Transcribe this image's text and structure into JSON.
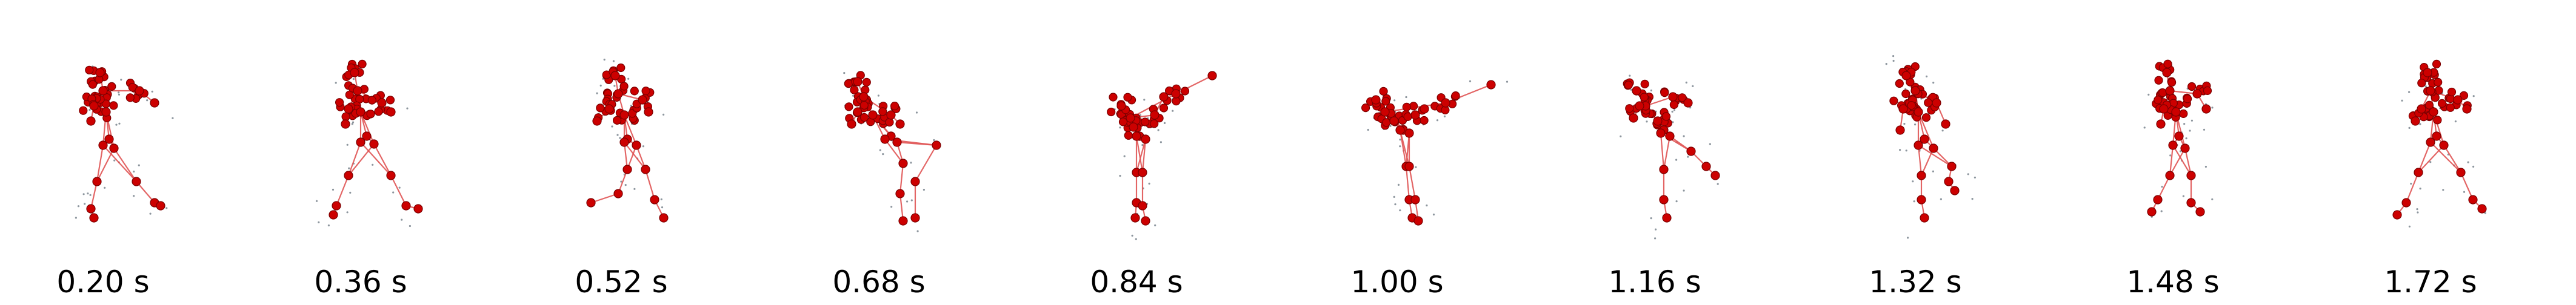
{
  "colors": {
    "joint": "#cc0000",
    "bone": "#e05555",
    "noise": "#2f3f4f",
    "label": "#000000",
    "background": "#ffffff"
  },
  "frames": [
    {
      "label": "0.20 s"
    },
    {
      "label": "0.36 s"
    },
    {
      "label": "0.52 s"
    },
    {
      "label": "0.68 s"
    },
    {
      "label": "0.84 s"
    },
    {
      "label": "1.00 s"
    },
    {
      "label": "1.16 s"
    },
    {
      "label": "1.32 s"
    },
    {
      "label": "1.48 s"
    },
    {
      "label": "1.72 s"
    }
  ]
}
